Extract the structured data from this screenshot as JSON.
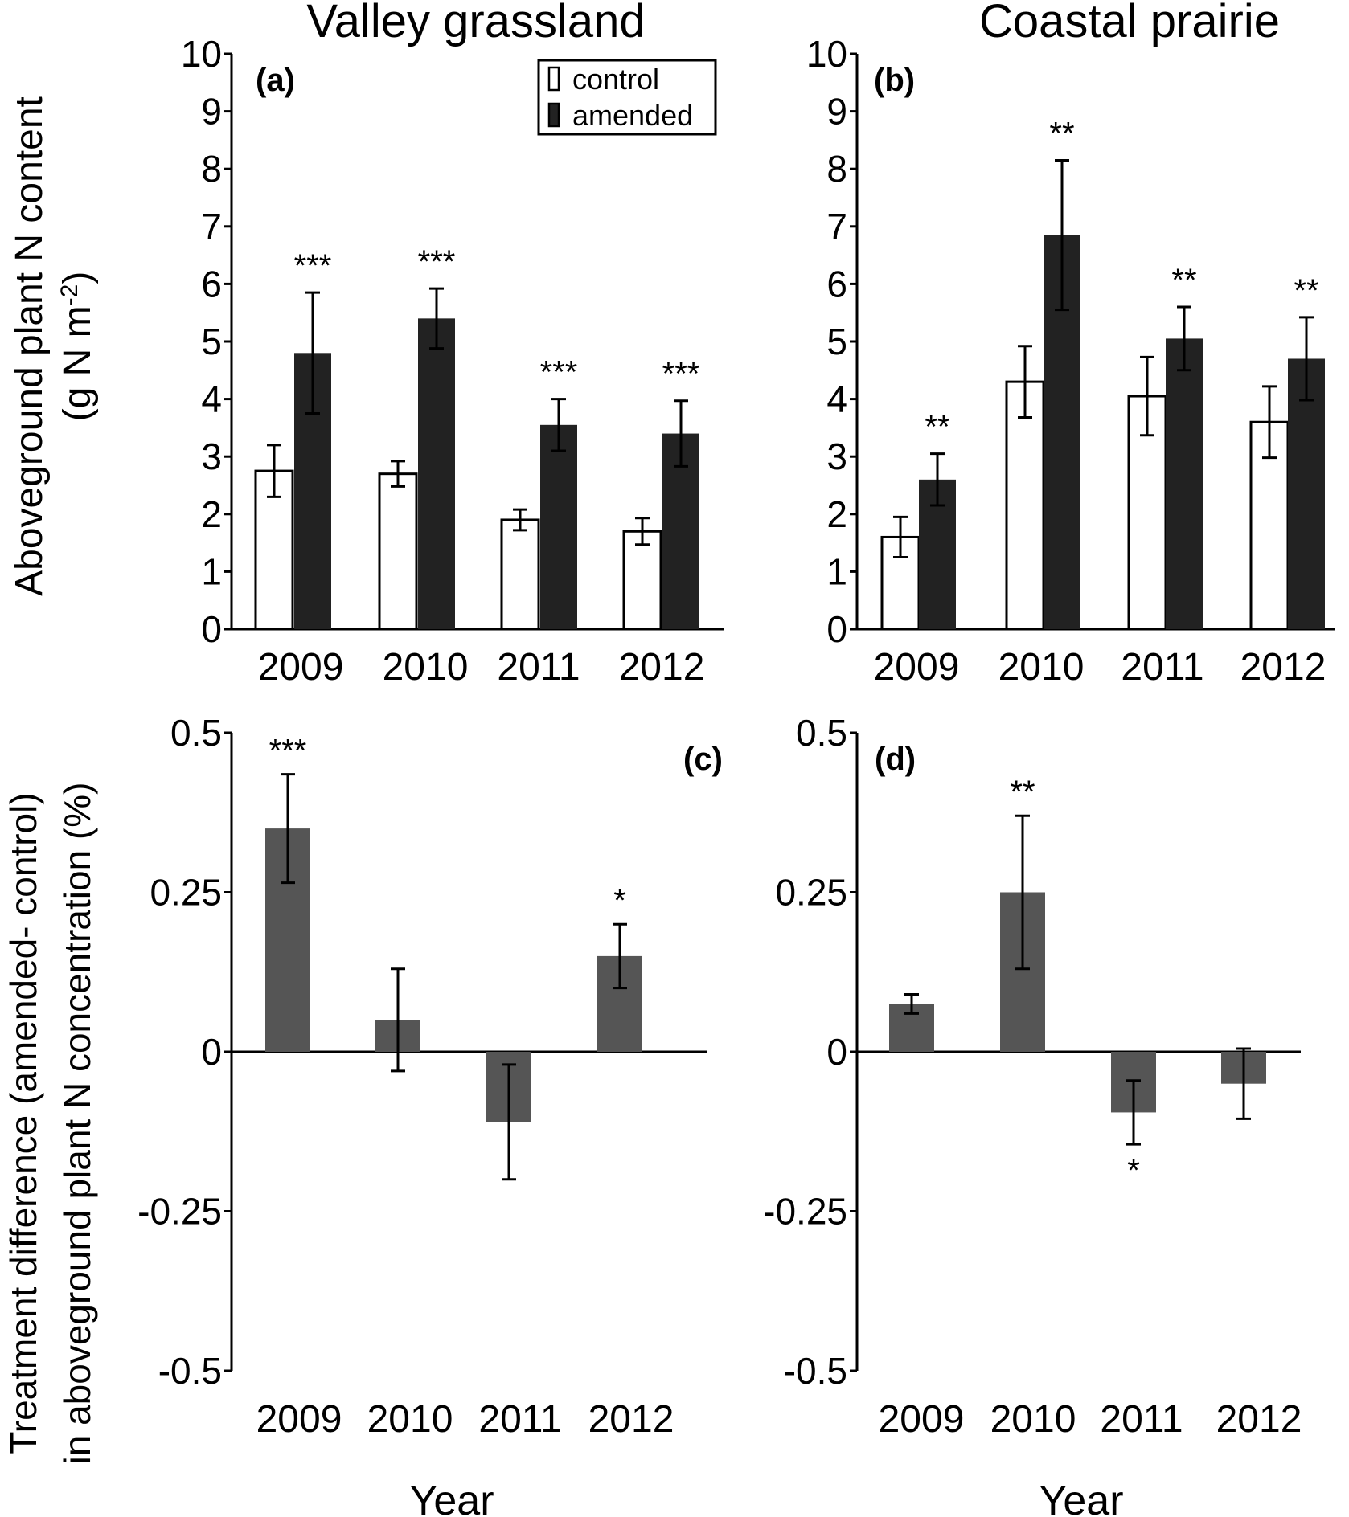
{
  "figure": {
    "column_titles": [
      "Valley grassland",
      "Coastal prairie"
    ],
    "ylabel_top": [
      "Aboveground plant N content",
      "(g N m",
      "-2",
      ")"
    ],
    "ylabel_bottom": [
      "Treatment difference (amended- control)",
      "in aboveground plant N concentration (%)"
    ],
    "xlabel": "Year"
  },
  "legend": {
    "labels": [
      "control",
      "amended"
    ],
    "position": "top-right of panel (a)"
  },
  "colors": {
    "control": "#ffffff",
    "amended": "#222222",
    "difference": "#555555",
    "axis": "#000000"
  },
  "chart_data": [
    {
      "type": "bar",
      "panel": "(a)",
      "categories": [
        "2009",
        "2010",
        "2011",
        "2012"
      ],
      "ylim": [
        0,
        10
      ],
      "yticks": [
        "0",
        "1",
        "2",
        "3",
        "4",
        "5",
        "6",
        "7",
        "8",
        "9",
        "10"
      ],
      "grid": false,
      "series": [
        {
          "name": "control",
          "values": [
            2.75,
            2.7,
            1.9,
            1.7
          ],
          "errors": [
            0.45,
            0.22,
            0.18,
            0.23
          ]
        },
        {
          "name": "amended",
          "values": [
            4.8,
            5.4,
            3.55,
            3.4
          ],
          "errors": [
            1.05,
            0.52,
            0.45,
            0.57
          ]
        }
      ],
      "annotations": [
        "***",
        "***",
        "***",
        "***"
      ]
    },
    {
      "type": "bar",
      "panel": "(b)",
      "categories": [
        "2009",
        "2010",
        "2011",
        "2012"
      ],
      "ylim": [
        0,
        10
      ],
      "yticks": [
        "0",
        "1",
        "2",
        "3",
        "4",
        "5",
        "6",
        "7",
        "8",
        "9",
        "10"
      ],
      "grid": false,
      "series": [
        {
          "name": "control",
          "values": [
            1.6,
            4.3,
            4.05,
            3.6
          ],
          "errors": [
            0.35,
            0.62,
            0.68,
            0.62
          ]
        },
        {
          "name": "amended",
          "values": [
            2.6,
            6.85,
            5.05,
            4.7
          ],
          "errors": [
            0.45,
            1.3,
            0.55,
            0.72
          ]
        }
      ],
      "annotations": [
        "**",
        "**",
        "**",
        "**"
      ]
    },
    {
      "type": "bar",
      "panel": "(c)",
      "categories": [
        "2009",
        "2010",
        "2011",
        "2012"
      ],
      "ylim": [
        -0.5,
        0.5
      ],
      "yticks": [
        "-0.5",
        "-0.25",
        "0",
        "0.25",
        "0.5"
      ],
      "grid": false,
      "values": [
        0.35,
        0.05,
        -0.11,
        0.15
      ],
      "errors": [
        0.085,
        0.08,
        0.09,
        0.05
      ],
      "annotations": [
        "***",
        "",
        "",
        "*"
      ]
    },
    {
      "type": "bar",
      "panel": "(d)",
      "categories": [
        "2009",
        "2010",
        "2011",
        "2012"
      ],
      "ylim": [
        -0.5,
        0.5
      ],
      "yticks": [
        "-0.5",
        "-0.25",
        "0",
        "0.25",
        "0.5"
      ],
      "grid": false,
      "values": [
        0.075,
        0.25,
        -0.095,
        -0.05
      ],
      "errors": [
        0.015,
        0.12,
        0.05,
        0.055
      ],
      "annotations": [
        "",
        "**",
        "*",
        ""
      ]
    }
  ]
}
